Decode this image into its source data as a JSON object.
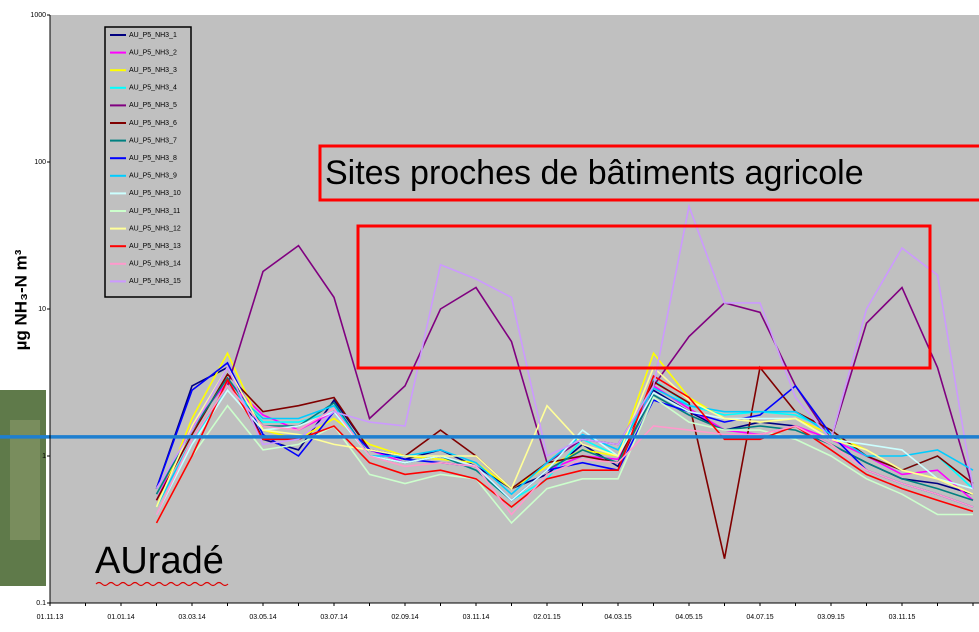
{
  "chart_data": {
    "type": "line",
    "y_label": "µg NH₃-N m³",
    "annotations": [
      "Sites proches de bâtiments agricole",
      "AUradé"
    ],
    "categories": [
      "01.11.13",
      null,
      "01.01.14",
      null,
      "03.03.14",
      null,
      "03.05.14",
      null,
      "03.07.14",
      null,
      "02.09.14",
      null,
      "03.11.14",
      null,
      "02.01.15",
      null,
      "04.03.15",
      null,
      "04.05.15",
      null,
      "04.07.15",
      null,
      "03.09.15",
      null,
      "03.11.15",
      null,
      null
    ],
    "log_y": true,
    "ylim": [
      0.1,
      1000
    ],
    "yticks": [
      0.1,
      1,
      10,
      100,
      1000
    ],
    "hline": 1.35,
    "hline_color": "#1e7fd0",
    "background": "#c0c0c0",
    "legend": "top-left",
    "series": [
      {
        "name": "AU_P5_NH3_1",
        "color": "#000080",
        "values": [
          null,
          null,
          null,
          0.6,
          3.0,
          4.0,
          1.3,
          1.1,
          2.4,
          1.1,
          0.95,
          1.1,
          0.85,
          0.6,
          0.75,
          1.2,
          0.85,
          2.8,
          2.0,
          1.5,
          1.7,
          1.6,
          1.2,
          0.9,
          0.7,
          0.65,
          0.55
        ]
      },
      {
        "name": "AU_P5_NH3_2",
        "color": "#ff00ff",
        "values": [
          null,
          null,
          null,
          0.5,
          1.6,
          3.2,
          1.9,
          1.5,
          2.0,
          1.1,
          0.9,
          1.0,
          0.85,
          0.5,
          0.8,
          1.0,
          0.95,
          3.0,
          2.1,
          1.5,
          1.4,
          1.6,
          1.3,
          1.0,
          0.75,
          0.8,
          0.5
        ]
      },
      {
        "name": "AU_P5_NH3_3",
        "color": "#ffff00",
        "values": [
          null,
          null,
          null,
          0.45,
          1.8,
          5.0,
          1.5,
          1.3,
          1.8,
          1.2,
          1.0,
          0.95,
          0.9,
          0.6,
          0.85,
          1.1,
          1.0,
          5.0,
          2.5,
          1.8,
          1.7,
          1.8,
          1.4,
          1.1,
          0.8,
          0.7,
          0.55
        ]
      },
      {
        "name": "AU_P5_NH3_4",
        "color": "#00ffff",
        "values": [
          null,
          null,
          null,
          0.4,
          1.2,
          3.0,
          1.7,
          1.7,
          2.0,
          1.0,
          0.9,
          1.0,
          0.8,
          0.5,
          0.7,
          1.3,
          1.0,
          3.3,
          2.2,
          1.9,
          2.0,
          1.9,
          1.5,
          1.0,
          0.8,
          1.0,
          0.6
        ]
      },
      {
        "name": "AU_P5_NH3_5",
        "color": "#800080",
        "values": [
          null,
          null,
          null,
          null,
          1.3,
          3.0,
          18,
          27,
          12,
          1.8,
          3.0,
          10,
          14,
          6.0,
          0.9,
          1.3,
          1.2,
          3.0,
          6.5,
          11,
          9.5,
          3.0,
          1.3,
          8.0,
          14,
          4.0,
          0.6
        ]
      },
      {
        "name": "AU_P5_NH3_6",
        "color": "#800000",
        "values": [
          null,
          null,
          null,
          0.5,
          1.4,
          3.6,
          2.0,
          2.2,
          2.5,
          1.1,
          1.0,
          1.5,
          1.0,
          0.6,
          0.9,
          1.0,
          0.9,
          3.2,
          2.3,
          0.2,
          4.0,
          2.0,
          1.5,
          1.0,
          0.8,
          1.0,
          0.65
        ]
      },
      {
        "name": "AU_P5_NH3_7",
        "color": "#008080",
        "values": [
          null,
          null,
          null,
          0.55,
          1.5,
          3.4,
          1.6,
          1.6,
          2.3,
          1.0,
          0.9,
          1.0,
          0.8,
          0.5,
          0.8,
          1.1,
          0.9,
          2.6,
          1.9,
          1.5,
          1.6,
          1.5,
          1.2,
          0.9,
          0.7,
          0.6,
          0.5
        ]
      },
      {
        "name": "AU_P5_NH3_8",
        "color": "#0000ff",
        "values": [
          null,
          null,
          null,
          0.6,
          2.8,
          4.3,
          1.4,
          1.0,
          2.0,
          1.1,
          0.95,
          0.9,
          0.85,
          0.5,
          0.8,
          0.9,
          0.8,
          2.4,
          2.0,
          1.7,
          1.9,
          3.0,
          1.4,
          0.8,
          0.65,
          0.55,
          0.45
        ]
      },
      {
        "name": "AU_P5_NH3_9",
        "color": "#00ccff",
        "values": [
          null,
          null,
          null,
          0.45,
          1.3,
          3.0,
          1.8,
          1.8,
          2.2,
          1.0,
          1.0,
          1.1,
          0.9,
          0.55,
          0.9,
          1.4,
          1.1,
          2.9,
          2.2,
          2.0,
          2.0,
          2.0,
          1.4,
          1.0,
          1.0,
          1.1,
          0.8
        ]
      },
      {
        "name": "AU_P5_NH3_10",
        "color": "#ccffff",
        "values": [
          null,
          null,
          null,
          0.4,
          1.2,
          2.8,
          1.5,
          1.6,
          2.0,
          1.0,
          0.9,
          1.0,
          0.85,
          0.5,
          0.8,
          1.5,
          1.0,
          2.7,
          2.0,
          1.8,
          1.8,
          1.8,
          1.3,
          1.2,
          1.1,
          0.7,
          0.6
        ]
      },
      {
        "name": "AU_P5_NH3_11",
        "color": "#ccffcc",
        "values": [
          null,
          null,
          null,
          0.35,
          1.0,
          2.2,
          1.1,
          1.2,
          1.6,
          0.75,
          0.65,
          0.75,
          0.7,
          0.35,
          0.6,
          0.7,
          0.7,
          2.5,
          1.7,
          1.5,
          1.5,
          1.3,
          1.0,
          0.7,
          0.55,
          0.4,
          0.4
        ]
      },
      {
        "name": "AU_P5_NH3_12",
        "color": "#ffff99",
        "values": [
          null,
          null,
          null,
          0.45,
          1.6,
          4.0,
          1.5,
          1.4,
          1.2,
          1.1,
          1.0,
          1.0,
          1.0,
          0.6,
          2.2,
          1.2,
          1.0,
          4.0,
          2.4,
          1.8,
          1.7,
          1.8,
          1.3,
          1.1,
          0.8,
          0.7,
          0.55
        ]
      },
      {
        "name": "AU_P5_NH3_13",
        "color": "#ff0000",
        "values": [
          null,
          null,
          null,
          0.35,
          1.0,
          3.3,
          1.3,
          1.3,
          1.6,
          0.9,
          0.75,
          0.8,
          0.7,
          0.45,
          0.7,
          0.8,
          0.8,
          3.5,
          2.5,
          1.3,
          1.3,
          1.6,
          1.1,
          0.75,
          0.6,
          0.5,
          0.42
        ]
      },
      {
        "name": "AU_P5_NH3_14",
        "color": "#ff99cc",
        "values": [
          null,
          null,
          null,
          0.4,
          1.3,
          3.0,
          1.6,
          1.5,
          2.1,
          1.0,
          0.85,
          0.9,
          0.85,
          0.4,
          0.75,
          0.95,
          0.9,
          1.6,
          1.5,
          1.4,
          1.4,
          1.6,
          1.2,
          0.8,
          0.65,
          0.55,
          0.45
        ]
      },
      {
        "name": "AU_P5_NH3_15",
        "color": "#cc99ff",
        "values": [
          null,
          null,
          null,
          0.6,
          1.5,
          4.0,
          1.2,
          1.3,
          2.0,
          1.7,
          1.6,
          20,
          16,
          12,
          1.0,
          1.3,
          1.2,
          3.0,
          50,
          11,
          11,
          2.5,
          1.3,
          10,
          26,
          17,
          0.6
        ]
      }
    ]
  }
}
